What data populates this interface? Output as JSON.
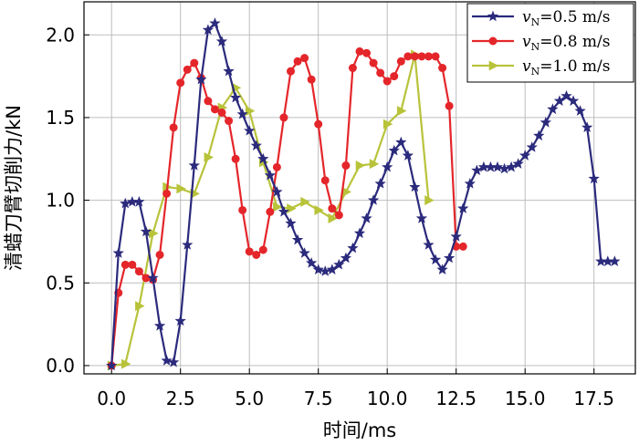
{
  "chart_data": {
    "type": "line",
    "xlabel": "时间/ms",
    "ylabel": "清蜡刀臂切削力/kN",
    "xlim": [
      -1.0,
      19.0
    ],
    "ylim": [
      -0.05,
      2.2
    ],
    "xticks": [
      "0.0",
      "2.5",
      "5.0",
      "7.5",
      "10.0",
      "12.5",
      "15.0",
      "17.5"
    ],
    "yticks": [
      "0.0",
      "0.5",
      "1.0",
      "1.5",
      "2.0"
    ],
    "grid": true,
    "legend_position": "top-right",
    "series": [
      {
        "name_prefix": "v",
        "name_sub": "N",
        "name_value": "=0.5 m/s",
        "color": "#2b2a7c",
        "marker": "star",
        "x": [
          0.0,
          0.25,
          0.5,
          0.75,
          1.0,
          1.25,
          1.5,
          1.75,
          2.0,
          2.25,
          2.5,
          2.75,
          3.0,
          3.25,
          3.5,
          3.75,
          4.0,
          4.25,
          4.5,
          4.75,
          5.0,
          5.25,
          5.5,
          5.75,
          6.0,
          6.25,
          6.5,
          6.75,
          7.0,
          7.25,
          7.5,
          7.75,
          8.0,
          8.25,
          8.5,
          8.75,
          9.0,
          9.25,
          9.5,
          9.75,
          10.0,
          10.25,
          10.5,
          10.75,
          11.0,
          11.25,
          11.5,
          11.75,
          12.0,
          12.25,
          12.5,
          12.75,
          13.0,
          13.25,
          13.5,
          13.75,
          14.0,
          14.25,
          14.5,
          14.75,
          15.0,
          15.25,
          15.5,
          15.75,
          16.0,
          16.25,
          16.5,
          16.75,
          17.0,
          17.25,
          17.5,
          17.75,
          18.0,
          18.25
        ],
        "y": [
          0.0,
          0.68,
          0.98,
          0.99,
          0.99,
          0.81,
          0.53,
          0.24,
          0.03,
          0.02,
          0.27,
          0.73,
          1.21,
          1.73,
          2.03,
          2.07,
          1.96,
          1.78,
          1.62,
          1.52,
          1.42,
          1.33,
          1.25,
          1.15,
          1.05,
          0.93,
          0.86,
          0.76,
          0.68,
          0.62,
          0.58,
          0.57,
          0.58,
          0.61,
          0.65,
          0.71,
          0.8,
          0.89,
          1.0,
          1.1,
          1.2,
          1.3,
          1.35,
          1.27,
          1.08,
          0.89,
          0.73,
          0.64,
          0.58,
          0.65,
          0.78,
          0.95,
          1.1,
          1.18,
          1.2,
          1.2,
          1.2,
          1.19,
          1.2,
          1.22,
          1.27,
          1.32,
          1.39,
          1.47,
          1.55,
          1.6,
          1.63,
          1.6,
          1.54,
          1.44,
          1.13,
          0.63,
          0.63,
          0.63
        ]
      },
      {
        "name_prefix": "v",
        "name_sub": "N",
        "name_value": "=0.8 m/s",
        "color": "#e4262b",
        "marker": "circle",
        "x": [
          0.0,
          0.25,
          0.5,
          0.75,
          1.0,
          1.25,
          1.5,
          1.75,
          2.0,
          2.25,
          2.5,
          2.75,
          3.0,
          3.25,
          3.5,
          3.75,
          4.0,
          4.25,
          4.5,
          4.75,
          5.0,
          5.25,
          5.5,
          5.75,
          6.0,
          6.25,
          6.5,
          6.75,
          7.0,
          7.25,
          7.5,
          7.75,
          8.0,
          8.25,
          8.5,
          8.75,
          9.0,
          9.25,
          9.5,
          9.75,
          10.0,
          10.25,
          10.5,
          10.75,
          11.0,
          11.25,
          11.5,
          11.75,
          12.0,
          12.25,
          12.5,
          12.75
        ],
        "y": [
          0.0,
          0.44,
          0.61,
          0.61,
          0.57,
          0.53,
          0.52,
          0.67,
          1.04,
          1.44,
          1.71,
          1.79,
          1.83,
          1.74,
          1.6,
          1.55,
          1.53,
          1.48,
          1.25,
          0.94,
          0.69,
          0.67,
          0.7,
          0.93,
          1.2,
          1.5,
          1.78,
          1.84,
          1.86,
          1.73,
          1.46,
          1.12,
          0.95,
          0.91,
          1.21,
          1.8,
          1.9,
          1.89,
          1.83,
          1.77,
          1.72,
          1.75,
          1.84,
          1.87,
          1.87,
          1.87,
          1.87,
          1.87,
          1.8,
          1.57,
          0.72,
          0.72
        ]
      },
      {
        "name_prefix": "v",
        "name_sub": "N",
        "name_value": "=1.0 m/s",
        "color": "#b8c33a",
        "marker": "triangle-right",
        "x": [
          0.0,
          0.5,
          1.0,
          1.5,
          2.0,
          2.5,
          3.0,
          3.5,
          4.0,
          4.5,
          5.0,
          5.5,
          6.0,
          6.5,
          7.0,
          7.5,
          8.0,
          8.5,
          9.0,
          9.5,
          10.0,
          10.5,
          11.0,
          11.5
        ],
        "y": [
          0.0,
          0.01,
          0.36,
          0.8,
          1.08,
          1.07,
          1.04,
          1.26,
          1.56,
          1.68,
          1.54,
          1.23,
          0.96,
          0.95,
          0.99,
          0.94,
          0.89,
          1.05,
          1.21,
          1.22,
          1.46,
          1.54,
          1.88,
          1.0
        ]
      }
    ]
  }
}
